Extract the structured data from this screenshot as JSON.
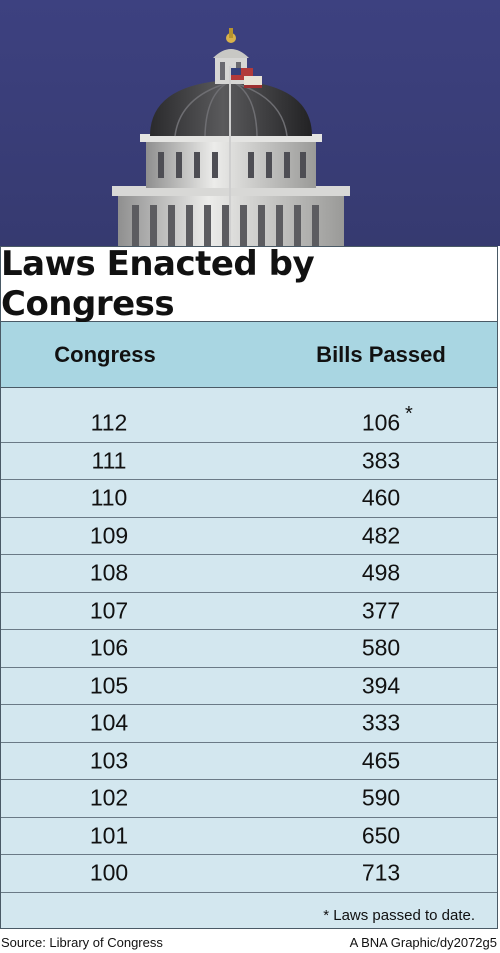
{
  "title": "Laws Enacted by Congress",
  "columns": {
    "congress": "Congress",
    "bills": "Bills Passed"
  },
  "footnote_marker": "*",
  "footnote": "* Laws passed to date.",
  "source": "Source: Library of Congress",
  "credit": "A BNA Graphic/dy2072g5",
  "colors": {
    "header_bg": "#a9d6e2",
    "body_bg": "#d3e7ef",
    "sky": "#3a3f78"
  },
  "photo": "capitol-dome",
  "chart_data": {
    "type": "table",
    "title": "Laws Enacted by Congress",
    "columns": [
      "Congress",
      "Bills Passed"
    ],
    "rows": [
      {
        "congress": "112",
        "bills": "106"
      },
      {
        "congress": "111",
        "bills": "383"
      },
      {
        "congress": "110",
        "bills": "460"
      },
      {
        "congress": "109",
        "bills": "482"
      },
      {
        "congress": "108",
        "bills": "498"
      },
      {
        "congress": "107",
        "bills": "377"
      },
      {
        "congress": "106",
        "bills": "580"
      },
      {
        "congress": "105",
        "bills": "394"
      },
      {
        "congress": "104",
        "bills": "333"
      },
      {
        "congress": "103",
        "bills": "465"
      },
      {
        "congress": "102",
        "bills": "590"
      },
      {
        "congress": "101",
        "bills": "650"
      },
      {
        "congress": "100",
        "bills": "713"
      }
    ]
  }
}
